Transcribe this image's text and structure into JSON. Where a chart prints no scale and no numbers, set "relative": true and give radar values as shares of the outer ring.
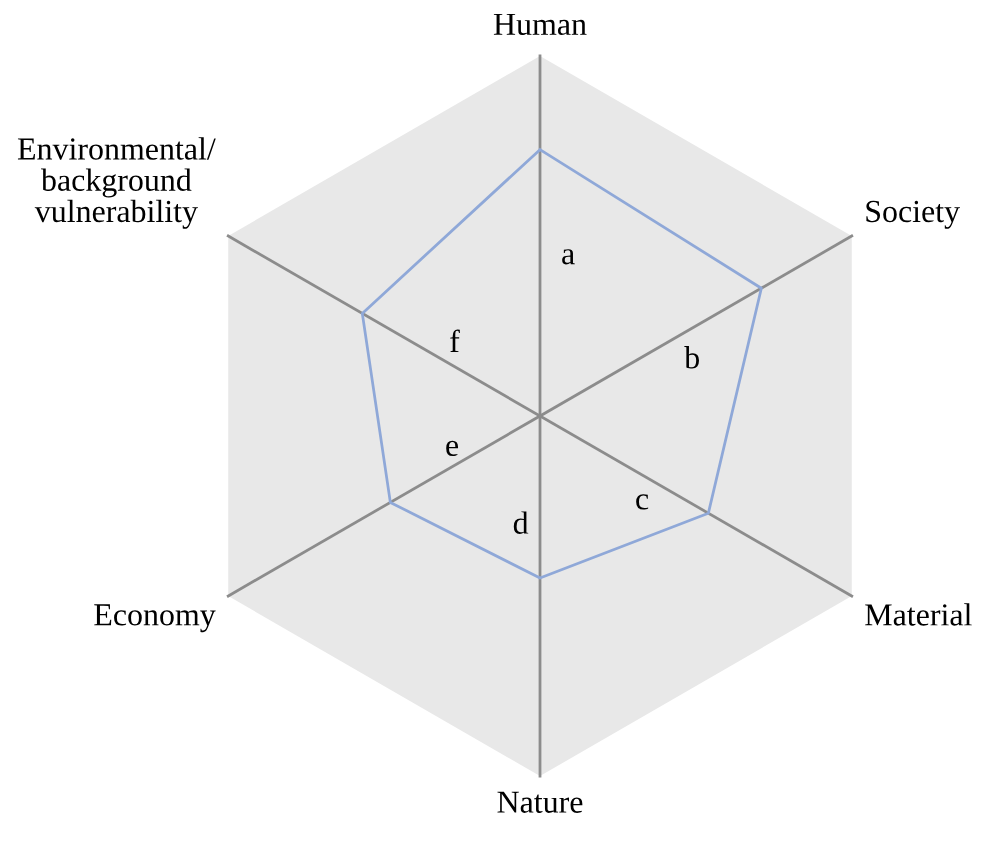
{
  "chart_data": {
    "type": "radar",
    "relative": true,
    "categories": [
      "Human",
      "Society",
      "Material",
      "Nature",
      "Economy",
      "Environmental/\nbackground\nvulnerability"
    ],
    "series": [
      {
        "color": "#8fa8d8",
        "values": [
          0.74,
          0.71,
          0.54,
          0.45,
          0.48,
          0.57
        ]
      }
    ],
    "annotations": [
      "a",
      "b",
      "c",
      "d",
      "e",
      "f"
    ]
  }
}
